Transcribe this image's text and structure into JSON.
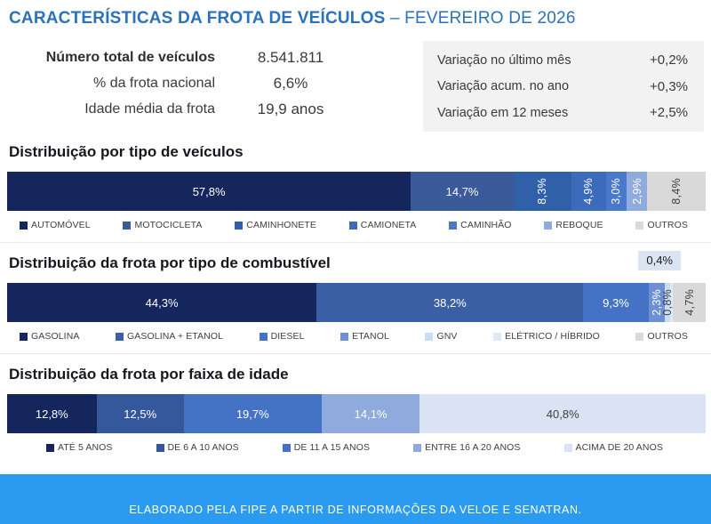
{
  "page": {
    "title_main": "CARACTERÍSTICAS DA FROTA DE VEÍCULOS",
    "title_suffix": " – FEVEREIRO DE 2026"
  },
  "summary": {
    "rows": [
      {
        "label": "Número total de veículos",
        "value": "8.541.811"
      },
      {
        "label": "% da frota nacional",
        "value": "6,6%"
      },
      {
        "label": "Idade média da frota",
        "value": "19,9 anos"
      }
    ]
  },
  "variations": {
    "rows": [
      {
        "label": "Variação no último mês",
        "value": "+0,2%"
      },
      {
        "label": "Variação acum. no ano",
        "value": "+0,3%"
      },
      {
        "label": "Variação em 12 meses",
        "value": "+2,5%"
      }
    ]
  },
  "chart_data": [
    {
      "type": "bar",
      "stacked": true,
      "orientation": "horizontal",
      "title": "Distribuição por tipo de veículos",
      "unit": "%",
      "xlim": [
        0,
        100
      ],
      "legend_position": "bottom",
      "segments": [
        {
          "name": "AUTOMÓVEL",
          "value": 57.8,
          "label": "57,8%",
          "color": "#14265c",
          "text_color": "#ffffff",
          "rotate": false
        },
        {
          "name": "MOTOCICLETA",
          "value": 14.7,
          "label": "14,7%",
          "color": "#3a5a9a",
          "text_color": "#ffffff",
          "rotate": false
        },
        {
          "name": "CAMINHONETE",
          "value": 8.3,
          "label": "8,3%",
          "color": "#3060a8",
          "text_color": "#ffffff",
          "rotate": true
        },
        {
          "name": "CAMIONETA",
          "value": 4.9,
          "label": "4,9%",
          "color": "#3d6bbb",
          "text_color": "#ffffff",
          "rotate": true
        },
        {
          "name": "CAMINHÃO",
          "value": 3.0,
          "label": "3,0%",
          "color": "#4a78cd",
          "text_color": "#ffffff",
          "rotate": true
        },
        {
          "name": "REBOQUE",
          "value": 2.9,
          "label": "2,9%",
          "color": "#8faadc",
          "text_color": "#ffffff",
          "rotate": true
        },
        {
          "name": "OUTROS",
          "value": 8.4,
          "label": "8,4%",
          "color": "#d9d9d9",
          "text_color": "#3f3f3f",
          "rotate": true
        }
      ]
    },
    {
      "type": "bar",
      "stacked": true,
      "orientation": "horizontal",
      "title": "Distribuição da frota por tipo de combustível",
      "unit": "%",
      "xlim": [
        0,
        100
      ],
      "legend_position": "bottom",
      "segments": [
        {
          "name": "GASOLINA",
          "value": 44.3,
          "label": "44,3%",
          "color": "#14265c",
          "text_color": "#ffffff",
          "rotate": false
        },
        {
          "name": "GASOLINA + ETANOL",
          "value": 38.2,
          "label": "38,2%",
          "color": "#3a5fa5",
          "text_color": "#ffffff",
          "rotate": false
        },
        {
          "name": "DIESEL",
          "value": 9.3,
          "label": "9,3%",
          "color": "#4472c4",
          "text_color": "#ffffff",
          "rotate": false
        },
        {
          "name": "ETANOL",
          "value": 2.3,
          "label": "2,3%",
          "color": "#6d8fd6",
          "text_color": "#ffffff",
          "rotate": true
        },
        {
          "name": "GNV",
          "value": 0.8,
          "label": "0,8%",
          "color": "#c9dcf3",
          "text_color": "#3f3f3f",
          "rotate": true
        },
        {
          "name": "ELÉTRICO / HÍBRIDO",
          "value": 0.4,
          "label": "0,4%",
          "color": "#dceaf8",
          "text_color": "#3f3f3f",
          "rotate": false,
          "callout": true
        },
        {
          "name": "OUTROS",
          "value": 4.7,
          "label": "4,7%",
          "color": "#d9d9d9",
          "text_color": "#3f3f3f",
          "rotate": true
        }
      ]
    },
    {
      "type": "bar",
      "stacked": true,
      "orientation": "horizontal",
      "title": "Distribuição da frota por faixa de idade",
      "unit": "%",
      "xlim": [
        0,
        100
      ],
      "legend_position": "bottom",
      "segments": [
        {
          "name": "ATÉ 5 ANOS",
          "value": 12.8,
          "label": "12,8%",
          "color": "#14265c",
          "text_color": "#ffffff",
          "rotate": false
        },
        {
          "name": "DE 6 A 10 ANOS",
          "value": 12.5,
          "label": "12,5%",
          "color": "#35589d",
          "text_color": "#ffffff",
          "rotate": false
        },
        {
          "name": "DE 11 A 15 ANOS",
          "value": 19.7,
          "label": "19,7%",
          "color": "#4472c4",
          "text_color": "#ffffff",
          "rotate": false
        },
        {
          "name": "ENTRE 16 A 20 ANOS",
          "value": 14.1,
          "label": "14,1%",
          "color": "#8faadc",
          "text_color": "#ffffff",
          "rotate": false
        },
        {
          "name": "ACIMA DE 20 ANOS",
          "value": 40.8,
          "label": "40,8%",
          "color": "#dae3f3",
          "text_color": "#3f3f3f",
          "rotate": false
        }
      ]
    }
  ],
  "footer": {
    "text": "ELABORADO PELA FIPE A PARTIR DE INFORMAÇÕES DA VELOE E SENATRAN."
  },
  "theme": {
    "title_blue": "#2a72ba",
    "footer_blue": "#2b9bf2",
    "panel_gray": "#f2f2f2",
    "outros_gray": "#d9d9d9"
  }
}
